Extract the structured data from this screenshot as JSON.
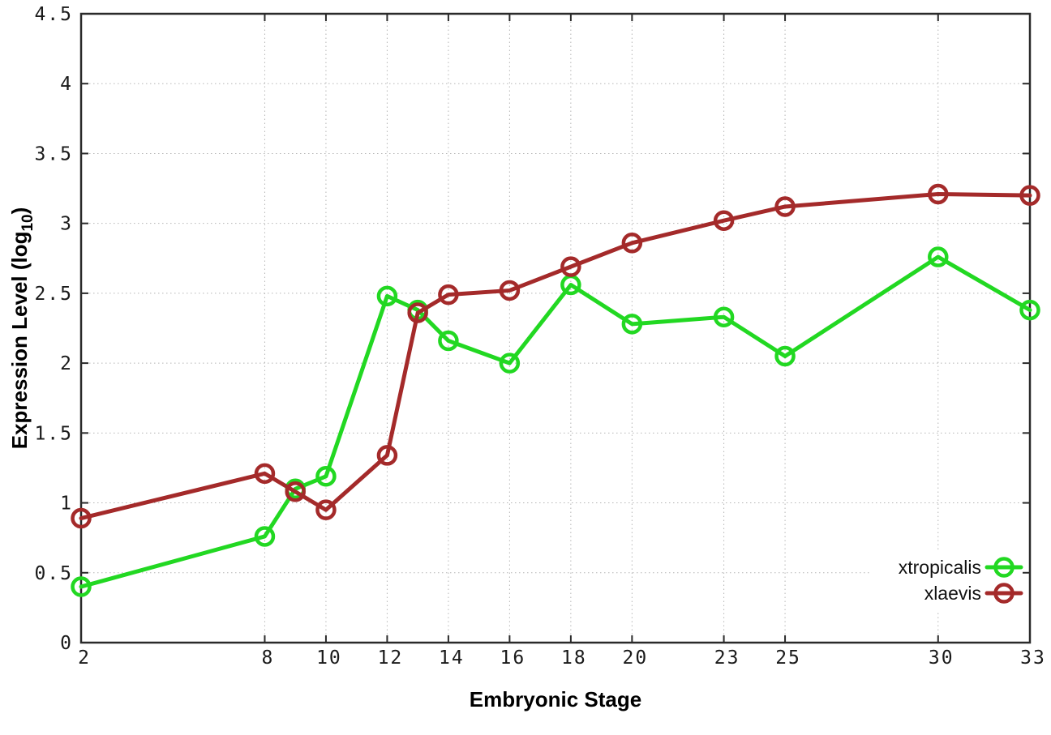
{
  "chart_data": {
    "type": "line",
    "title": "",
    "xlabel": "Embryonic Stage",
    "ylabel": {
      "main": "Expression Level (log",
      "sub": "10",
      "close": ")"
    },
    "xlim": [
      2,
      33
    ],
    "ylim": [
      0,
      4.5
    ],
    "grid": true,
    "legend_position": "bottom-right",
    "x_tick_labels": [
      "2",
      "8",
      "10",
      "12",
      "14",
      "16",
      "18",
      "20",
      "23",
      "25",
      "30",
      "33"
    ],
    "y_tick_labels": [
      "0",
      "0.5",
      "1",
      "1.5",
      "2",
      "2.5",
      "3",
      "3.5",
      "4",
      "4.5"
    ],
    "x": [
      2,
      8,
      9,
      10,
      12,
      13,
      14,
      16,
      18,
      20,
      23,
      25,
      30,
      33
    ],
    "series": [
      {
        "name": "xtropicalis",
        "color": "#22d822",
        "values": [
          0.4,
          0.76,
          1.1,
          1.19,
          2.48,
          2.38,
          2.16,
          2.0,
          2.56,
          2.28,
          2.33,
          2.05,
          2.76,
          2.38
        ]
      },
      {
        "name": "xlaevis",
        "color": "#a42a2a",
        "values": [
          0.89,
          1.21,
          1.08,
          0.95,
          1.34,
          2.36,
          2.49,
          2.52,
          2.69,
          2.86,
          3.02,
          3.12,
          3.21,
          3.2
        ]
      }
    ],
    "axis_color": "#2a2a2a",
    "grid_color": "#b5b5b5",
    "background_color": "#ffffff"
  }
}
